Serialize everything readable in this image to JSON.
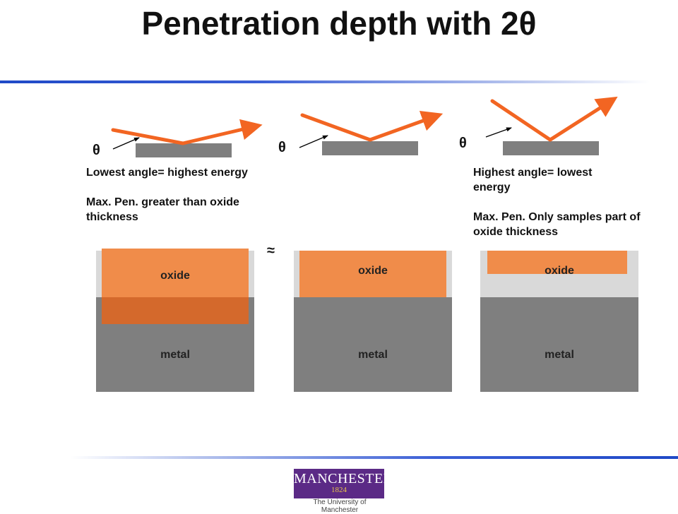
{
  "title": "Penetration depth with 2θ",
  "theta_symbol": "θ",
  "approx_symbol": "≈",
  "panels": [
    {
      "caption_line1": "Lowest angle= highest energy",
      "caption_line2": "Max. Pen. greater than oxide thickness",
      "oxide_label": "oxide",
      "metal_label": "metal"
    },
    {
      "oxide_label": "oxide",
      "metal_label": "metal"
    },
    {
      "caption_line1": "Highest angle= lowest energy",
      "caption_line2": "Max. Pen. Only samples part of oxide thickness",
      "oxide_label": "oxide",
      "metal_label": "metal"
    }
  ],
  "colors": {
    "beam": "#f26522",
    "oxide": "#f08c4a",
    "penetration_overlap": "#d4692c",
    "metal": "#7f7f7f",
    "background_gap": "#d9d9d9",
    "rule": "#1f49c7",
    "logo_bg": "#5b2a86"
  },
  "logo": {
    "name": "MANCHESTER",
    "year": "1824",
    "subtitle": "The University of Manchester"
  }
}
